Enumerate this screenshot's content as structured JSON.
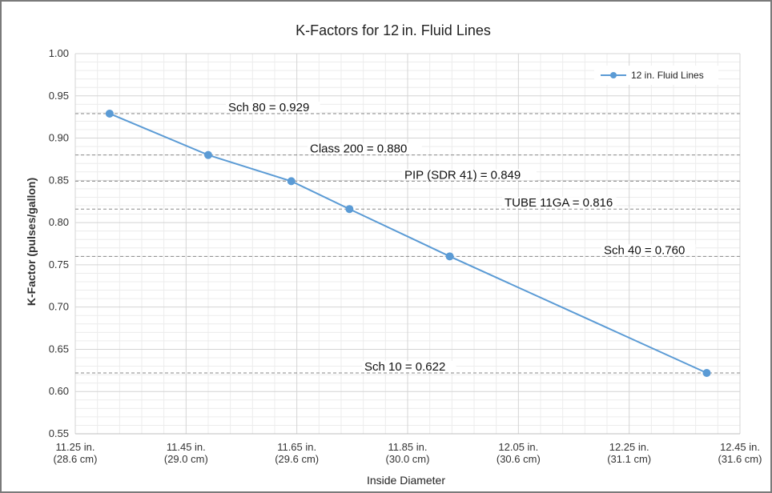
{
  "chart_data": {
    "type": "line",
    "title": "K-Factors for 12 in. Fluid Lines",
    "xlabel": "Inside Diameter",
    "ylabel": "K-Factor (pulses/gallon)",
    "xlim": [
      11.25,
      12.45
    ],
    "ylim": [
      0.55,
      1.0
    ],
    "y_ticks": [
      "0.55",
      "0.60",
      "0.65",
      "0.70",
      "0.75",
      "0.80",
      "0.85",
      "0.90",
      "0.95",
      "1.00"
    ],
    "x_ticks": [
      {
        "value": 11.25,
        "line1": "11.25 in.",
        "line2": "(28.6 cm)"
      },
      {
        "value": 11.45,
        "line1": "11.45 in.",
        "line2": "(29.0 cm)"
      },
      {
        "value": 11.65,
        "line1": "11.65 in.",
        "line2": "(29.6 cm)"
      },
      {
        "value": 11.85,
        "line1": "11.85 in.",
        "line2": "(30.0 cm)"
      },
      {
        "value": 12.05,
        "line1": "12.05 in.",
        "line2": "(30.6 cm)"
      },
      {
        "value": 12.25,
        "line1": "12.25 in.",
        "line2": "(31.1 cm)"
      },
      {
        "value": 12.45,
        "line1": "12.45 in.",
        "line2": "(31.6 cm)"
      }
    ],
    "grid": true,
    "legend_position": "top-right",
    "series": [
      {
        "name": "12 in. Fluid Lines",
        "color": "#5b9bd5",
        "x": [
          11.312,
          11.49,
          11.64,
          11.745,
          11.926,
          12.39
        ],
        "y": [
          0.929,
          0.88,
          0.849,
          0.816,
          0.76,
          0.622
        ]
      }
    ],
    "reference_lines": [
      {
        "y": 0.929,
        "label": "Sch 80 = 0.929"
      },
      {
        "y": 0.88,
        "label": "Class 200 = 0.880"
      },
      {
        "y": 0.849,
        "label": "PIP (SDR 41) = 0.849"
      },
      {
        "y": 0.816,
        "label": "TUBE 11GA = 0.816"
      },
      {
        "y": 0.76,
        "label": "Sch 40 = 0.760"
      },
      {
        "y": 0.622,
        "label": "Sch 10 = 0.622"
      }
    ]
  }
}
